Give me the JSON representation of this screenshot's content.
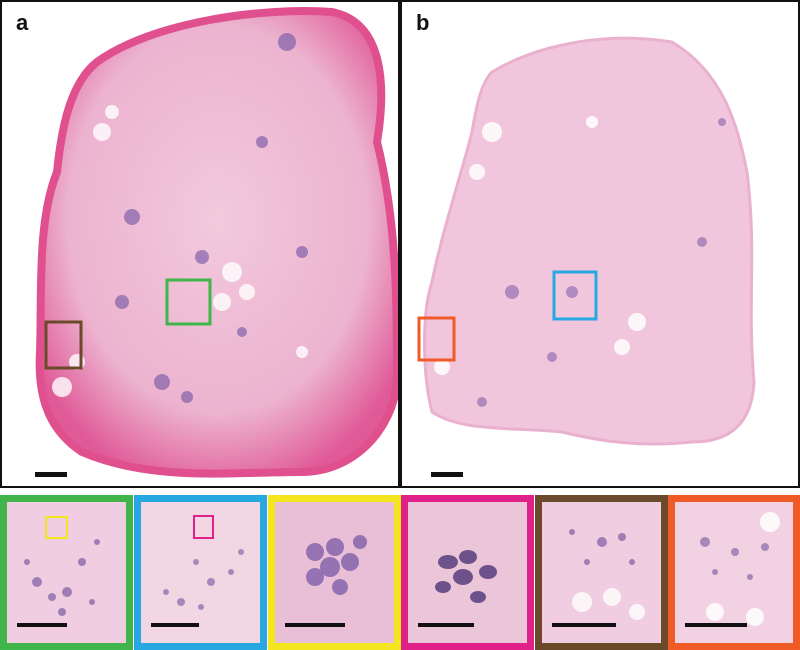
{
  "panels": [
    {
      "id": "a",
      "label": "a"
    },
    {
      "id": "b",
      "label": "b"
    }
  ],
  "colors": {
    "green": "#3fb54a",
    "blue": "#27a8e0",
    "yellow": "#f3e61e",
    "magenta": "#e0218a",
    "brown": "#6b4a2b",
    "orange": "#ef5a27",
    "stain_pink": "#e9a3c6",
    "stain_purple": "#6b4a9a"
  },
  "insets": [
    {
      "color_key": "green",
      "content": "tissue-detail"
    },
    {
      "color_key": "blue",
      "content": "tissue-detail"
    },
    {
      "color_key": "yellow",
      "content": "cell-cluster-zoom"
    },
    {
      "color_key": "magenta",
      "content": "cell-cluster-zoom"
    },
    {
      "color_key": "brown",
      "content": "tissue-detail"
    },
    {
      "color_key": "orange",
      "content": "tissue-detail"
    }
  ]
}
